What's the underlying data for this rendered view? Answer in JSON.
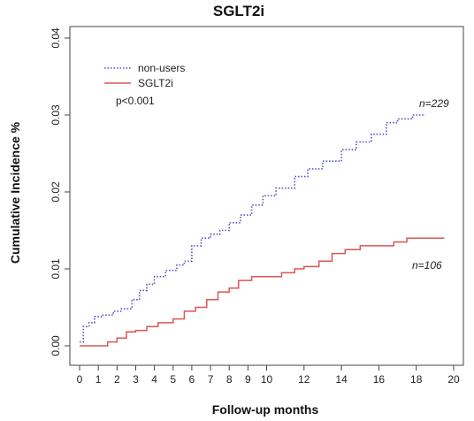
{
  "chart_data": {
    "type": "line",
    "title": "SGLT2i",
    "xlabel": "Follow-up months",
    "ylabel": "Cumulative Incidence %",
    "xlim": [
      0,
      20
    ],
    "ylim": [
      0,
      0.04
    ],
    "x_ticks": [
      0,
      1,
      2,
      3,
      4,
      5,
      6,
      7,
      8,
      9,
      10,
      12,
      14,
      16,
      18,
      20
    ],
    "y_ticks": [
      "0.00",
      "0.01",
      "0.02",
      "0.03",
      "0.04"
    ],
    "y_tick_values": [
      0,
      0.01,
      0.02,
      0.03,
      0.04
    ],
    "grid": false,
    "legend_position": "top-left",
    "p_value": "p<0.001",
    "series": [
      {
        "name": "non-users",
        "style": "dotted",
        "color": "#5050cc",
        "n_label": "n=229",
        "points": [
          [
            0,
            0.0005
          ],
          [
            0.2,
            0.0025
          ],
          [
            0.5,
            0.003
          ],
          [
            0.8,
            0.0038
          ],
          [
            1.2,
            0.004
          ],
          [
            1.8,
            0.0045
          ],
          [
            2.2,
            0.0048
          ],
          [
            2.8,
            0.006
          ],
          [
            3.2,
            0.0072
          ],
          [
            3.6,
            0.008
          ],
          [
            4.0,
            0.009
          ],
          [
            4.6,
            0.0098
          ],
          [
            5.2,
            0.0105
          ],
          [
            5.6,
            0.011
          ],
          [
            6.0,
            0.013
          ],
          [
            6.5,
            0.014
          ],
          [
            7.0,
            0.0145
          ],
          [
            7.5,
            0.015
          ],
          [
            8.0,
            0.016
          ],
          [
            8.6,
            0.017
          ],
          [
            9.2,
            0.0183
          ],
          [
            9.8,
            0.0195
          ],
          [
            10.5,
            0.0205
          ],
          [
            11.5,
            0.022
          ],
          [
            12.2,
            0.023
          ],
          [
            13.0,
            0.024
          ],
          [
            14.0,
            0.0255
          ],
          [
            14.8,
            0.0265
          ],
          [
            15.6,
            0.0275
          ],
          [
            16.4,
            0.029
          ],
          [
            17.0,
            0.0295
          ],
          [
            17.8,
            0.03
          ],
          [
            18.5,
            0.03
          ]
        ]
      },
      {
        "name": "SGLT2i",
        "style": "solid",
        "color": "#dd5555",
        "n_label": "n=106",
        "points": [
          [
            0,
            0.0
          ],
          [
            0.8,
            0.0
          ],
          [
            1.5,
            0.0005
          ],
          [
            2.0,
            0.001
          ],
          [
            2.5,
            0.0018
          ],
          [
            3.0,
            0.002
          ],
          [
            3.6,
            0.0025
          ],
          [
            4.2,
            0.003
          ],
          [
            5.0,
            0.0035
          ],
          [
            5.6,
            0.0045
          ],
          [
            6.2,
            0.005
          ],
          [
            6.8,
            0.006
          ],
          [
            7.4,
            0.007
          ],
          [
            8.0,
            0.0075
          ],
          [
            8.5,
            0.0085
          ],
          [
            9.2,
            0.009
          ],
          [
            10.0,
            0.009
          ],
          [
            10.8,
            0.0095
          ],
          [
            11.5,
            0.01
          ],
          [
            12.0,
            0.0103
          ],
          [
            12.8,
            0.011
          ],
          [
            13.5,
            0.012
          ],
          [
            14.2,
            0.0125
          ],
          [
            15.0,
            0.013
          ],
          [
            16.0,
            0.013
          ],
          [
            16.8,
            0.0135
          ],
          [
            17.5,
            0.014
          ],
          [
            19.5,
            0.014
          ]
        ]
      }
    ]
  }
}
